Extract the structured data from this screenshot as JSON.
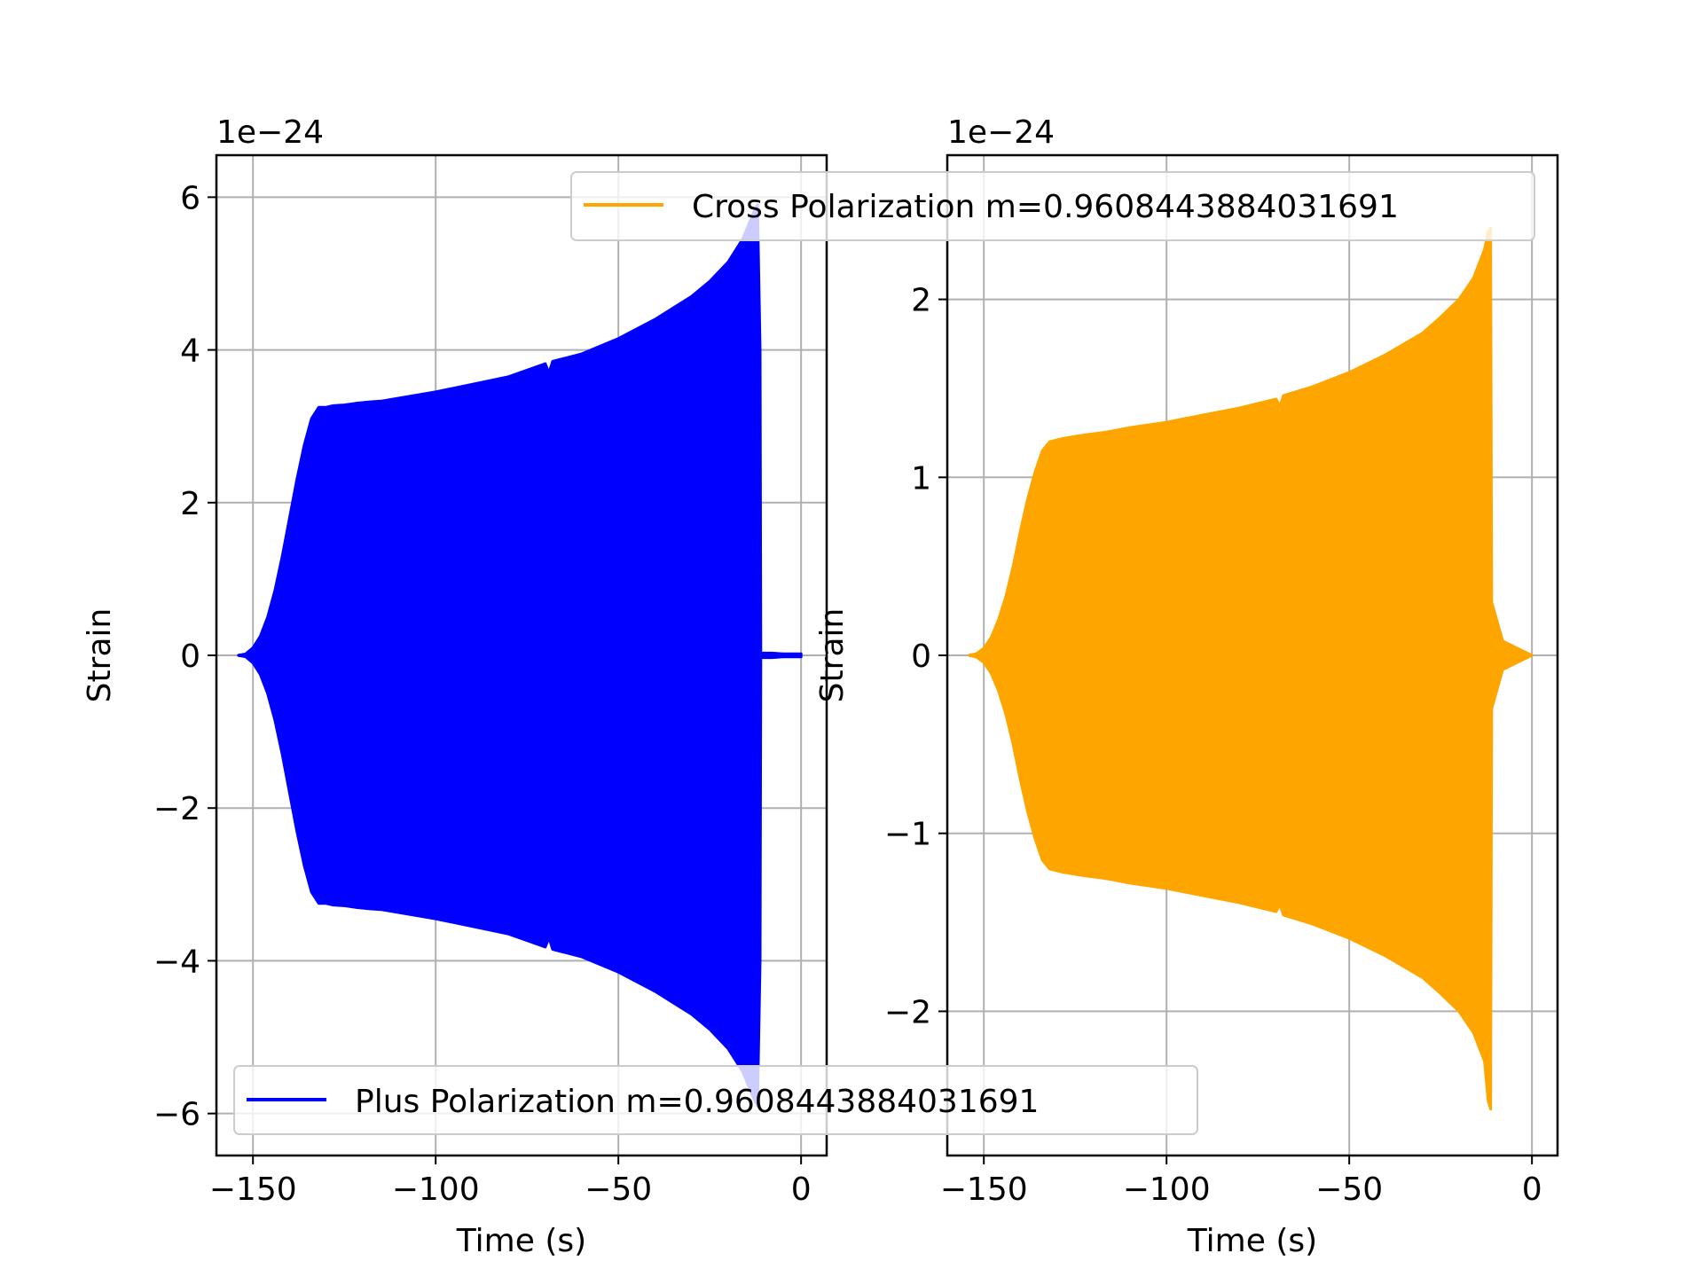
{
  "chart_data": [
    {
      "type": "line",
      "x": [
        -154,
        -152,
        -150,
        -148,
        -146,
        -144,
        -142,
        -140,
        -138,
        -136,
        -134,
        -132,
        -130,
        -128,
        -125,
        -122,
        -118,
        -115,
        -110,
        -100,
        -90,
        -80,
        -70,
        -69,
        -68,
        -60,
        -50,
        -40,
        -30,
        -25,
        -20,
        -16,
        -13,
        -11.9,
        -11.2,
        -11,
        -8,
        -5,
        0
      ],
      "series": [
        {
          "name": "Plus Polarization m=0.9608443884031691",
          "color": "#0000ff",
          "upper": [
            0.0,
            0.02,
            0.1,
            0.25,
            0.5,
            0.85,
            1.3,
            1.8,
            2.3,
            2.75,
            3.1,
            3.25,
            3.25,
            3.27,
            3.28,
            3.3,
            3.32,
            3.33,
            3.37,
            3.45,
            3.55,
            3.65,
            3.82,
            3.7,
            3.85,
            3.95,
            4.15,
            4.4,
            4.7,
            4.9,
            5.15,
            5.45,
            5.8,
            5.9,
            4.0,
            0.03,
            0.03,
            0.02,
            0.02
          ],
          "lower": [
            0.0,
            -0.02,
            -0.1,
            -0.25,
            -0.5,
            -0.85,
            -1.3,
            -1.8,
            -2.3,
            -2.75,
            -3.1,
            -3.25,
            -3.25,
            -3.27,
            -3.28,
            -3.3,
            -3.32,
            -3.33,
            -3.37,
            -3.45,
            -3.55,
            -3.65,
            -3.82,
            -3.7,
            -3.85,
            -3.95,
            -4.15,
            -4.4,
            -4.7,
            -4.9,
            -5.15,
            -5.45,
            -5.8,
            -5.9,
            -4.0,
            -0.03,
            -0.03,
            -0.02,
            -0.02
          ]
        }
      ],
      "legend": {
        "label": "Plus Polarization m=0.9608443884031691",
        "placement": "lower-left"
      },
      "xlabel": "Time (s)",
      "ylabel": "Strain",
      "offset_text": "1e−24",
      "xlim": [
        -160,
        7
      ],
      "ylim": [
        -6.55,
        6.55
      ],
      "xticks": [
        -150,
        -100,
        -50,
        0
      ],
      "xtick_labels": [
        "−150",
        "−100",
        "−50",
        "0"
      ],
      "yticks": [
        -6,
        -4,
        -2,
        0,
        2,
        4,
        6
      ],
      "ytick_labels": [
        "−6",
        "−4",
        "−2",
        "0",
        "2",
        "4",
        "6"
      ],
      "grid": true
    },
    {
      "type": "line",
      "x": [
        -154,
        -152,
        -150,
        -148,
        -146,
        -144,
        -142,
        -140,
        -138,
        -136,
        -134,
        -132,
        -130,
        -128,
        -125,
        -122,
        -118,
        -115,
        -110,
        -100,
        -90,
        -80,
        -70,
        -69,
        -68,
        -60,
        -50,
        -40,
        -30,
        -25,
        -20,
        -16,
        -13,
        -12,
        -11.3,
        -11,
        -8,
        -5,
        -2,
        0
      ],
      "series": [
        {
          "name": "Cross Polarization m=0.9608443884031691",
          "color": "#ffa500",
          "upper": [
            0.0,
            0.01,
            0.04,
            0.1,
            0.2,
            0.33,
            0.5,
            0.7,
            0.88,
            1.03,
            1.15,
            1.2,
            1.21,
            1.22,
            1.23,
            1.24,
            1.25,
            1.26,
            1.28,
            1.31,
            1.35,
            1.39,
            1.44,
            1.4,
            1.46,
            1.51,
            1.59,
            1.69,
            1.81,
            1.9,
            2.0,
            2.12,
            2.28,
            2.38,
            2.4,
            0.3,
            0.08,
            0.05,
            0.02,
            0.0
          ],
          "lower": [
            0.0,
            -0.01,
            -0.04,
            -0.1,
            -0.2,
            -0.33,
            -0.5,
            -0.7,
            -0.88,
            -1.03,
            -1.15,
            -1.2,
            -1.21,
            -1.22,
            -1.23,
            -1.24,
            -1.25,
            -1.26,
            -1.28,
            -1.31,
            -1.35,
            -1.39,
            -1.44,
            -1.4,
            -1.46,
            -1.51,
            -1.59,
            -1.69,
            -1.81,
            -1.9,
            -2.0,
            -2.12,
            -2.28,
            -2.5,
            -2.55,
            -0.3,
            -0.08,
            -0.05,
            -0.02,
            0.0
          ]
        }
      ],
      "legend": {
        "label": "Cross Polarization m=0.9608443884031691",
        "placement": "upper-right"
      },
      "xlabel": "Time (s)",
      "ylabel": "Strain",
      "offset_text": "1e−24",
      "xlim": [
        -160,
        7
      ],
      "ylim": [
        -2.81,
        2.81
      ],
      "xticks": [
        -150,
        -100,
        -50,
        0
      ],
      "xtick_labels": [
        "−150",
        "−100",
        "−50",
        "0"
      ],
      "yticks": [
        -2,
        -1,
        0,
        1,
        2
      ],
      "ytick_labels": [
        "−2",
        "−1",
        "0",
        "1",
        "2"
      ],
      "grid": true
    }
  ]
}
